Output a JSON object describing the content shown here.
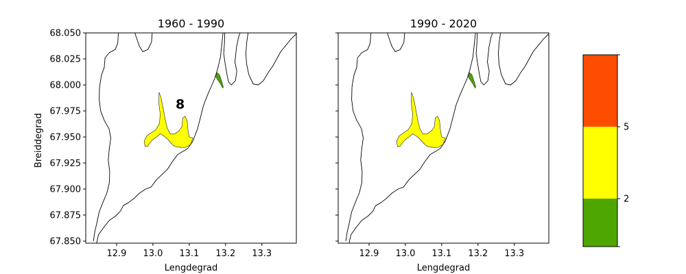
{
  "chart_data": [
    {
      "type": "map",
      "title": "1960 - 1990",
      "xlabel": "Lengdegrad",
      "ylabel": "Breiddegrad",
      "xlim": [
        12.815,
        13.395
      ],
      "ylim": [
        67.848,
        68.05
      ],
      "xticks": [
        12.9,
        13.0,
        13.1,
        13.2,
        13.3
      ],
      "xtick_labels": [
        "12.9",
        "13.0",
        "13.1",
        "13.2",
        "13.3"
      ],
      "yticks": [
        67.85,
        67.875,
        67.9,
        67.925,
        67.95,
        67.975,
        68.0,
        68.025,
        68.05
      ],
      "ytick_labels": [
        "67.850",
        "67.875",
        "67.900",
        "67.925",
        "67.950",
        "67.975",
        "68.000",
        "68.025",
        "68.050"
      ],
      "annotation": "8",
      "annotation_position": [
        13.075,
        67.982
      ],
      "regions": [
        {
          "name": "yellow-zone",
          "color": "#ffff00",
          "class": "2-5",
          "outline": [
            [
              13.017,
              67.993
            ],
            [
              13.022,
              67.988
            ],
            [
              13.028,
              67.978
            ],
            [
              13.035,
              67.965
            ],
            [
              13.04,
              67.958
            ],
            [
              13.048,
              67.953
            ],
            [
              13.06,
              67.953
            ],
            [
              13.072,
              67.956
            ],
            [
              13.08,
              67.96
            ],
            [
              13.082,
              67.968
            ],
            [
              13.088,
              67.97
            ],
            [
              13.094,
              67.966
            ],
            [
              13.097,
              67.955
            ],
            [
              13.1,
              67.95
            ],
            [
              13.11,
              67.949
            ],
            [
              13.104,
              67.943
            ],
            [
              13.09,
              67.94
            ],
            [
              13.075,
              67.94
            ],
            [
              13.06,
              67.941
            ],
            [
              13.05,
              67.944
            ],
            [
              13.04,
              67.948
            ],
            [
              13.03,
              67.951
            ],
            [
              13.02,
              67.953
            ],
            [
              13.01,
              67.95
            ],
            [
              12.998,
              67.947
            ],
            [
              12.985,
              67.941
            ],
            [
              12.978,
              67.941
            ],
            [
              12.976,
              67.946
            ],
            [
              12.983,
              67.951
            ],
            [
              12.995,
              67.954
            ],
            [
              13.008,
              67.957
            ],
            [
              13.018,
              67.963
            ],
            [
              13.02,
              67.972
            ],
            [
              13.016,
              67.983
            ]
          ]
        },
        {
          "name": "green-zone",
          "color": "#4ea600",
          "class": "<2",
          "outline": [
            [
              13.176,
              68.012
            ],
            [
              13.183,
              68.01
            ],
            [
              13.188,
              68.005
            ],
            [
              13.194,
              67.998
            ],
            [
              13.192,
              67.997
            ],
            [
              13.186,
              68.001
            ],
            [
              13.178,
              68.005
            ],
            [
              13.173,
              68.008
            ]
          ]
        }
      ]
    },
    {
      "type": "map",
      "title": "1990 - 2020",
      "xlabel": "Lengdegrad",
      "ylabel": "",
      "xlim": [
        12.815,
        13.395
      ],
      "ylim": [
        67.848,
        68.05
      ],
      "xticks": [
        12.9,
        13.0,
        13.1,
        13.2,
        13.3
      ],
      "xtick_labels": [
        "12.9",
        "13.0",
        "13.1",
        "13.2",
        "13.3"
      ],
      "regions": [
        {
          "name": "yellow-zone",
          "color": "#ffff00",
          "class": "2-5",
          "outline": [
            [
              13.017,
              67.993
            ],
            [
              13.022,
              67.988
            ],
            [
              13.028,
              67.978
            ],
            [
              13.035,
              67.965
            ],
            [
              13.04,
              67.958
            ],
            [
              13.048,
              67.953
            ],
            [
              13.06,
              67.953
            ],
            [
              13.072,
              67.956
            ],
            [
              13.08,
              67.96
            ],
            [
              13.082,
              67.968
            ],
            [
              13.088,
              67.97
            ],
            [
              13.094,
              67.966
            ],
            [
              13.097,
              67.955
            ],
            [
              13.1,
              67.95
            ],
            [
              13.11,
              67.949
            ],
            [
              13.104,
              67.943
            ],
            [
              13.09,
              67.94
            ],
            [
              13.075,
              67.94
            ],
            [
              13.06,
              67.941
            ],
            [
              13.05,
              67.944
            ],
            [
              13.04,
              67.948
            ],
            [
              13.03,
              67.951
            ],
            [
              13.02,
              67.953
            ],
            [
              13.01,
              67.95
            ],
            [
              12.998,
              67.947
            ],
            [
              12.985,
              67.941
            ],
            [
              12.978,
              67.941
            ],
            [
              12.976,
              67.946
            ],
            [
              12.983,
              67.951
            ],
            [
              12.995,
              67.954
            ],
            [
              13.008,
              67.957
            ],
            [
              13.018,
              67.963
            ],
            [
              13.02,
              67.972
            ],
            [
              13.016,
              67.983
            ]
          ]
        },
        {
          "name": "green-zone",
          "color": "#4ea600",
          "class": "<2",
          "outline": [
            [
              13.176,
              68.012
            ],
            [
              13.183,
              68.01
            ],
            [
              13.188,
              68.005
            ],
            [
              13.194,
              67.998
            ],
            [
              13.192,
              67.997
            ],
            [
              13.186,
              68.001
            ],
            [
              13.178,
              68.005
            ],
            [
              13.173,
              68.008
            ]
          ]
        }
      ]
    },
    {
      "type": "colorbar",
      "levels": [
        0,
        2,
        5,
        8
      ],
      "tick_labels": [
        "2",
        "5"
      ],
      "colors": [
        "#4ea600",
        "#ffff00",
        "#ff4d00"
      ]
    }
  ],
  "coastline": {
    "color": "#000000",
    "lines": [
      [
        [
          12.845,
          67.848
        ],
        [
          12.85,
          67.856
        ],
        [
          12.862,
          67.862
        ],
        [
          12.88,
          67.87
        ],
        [
          12.897,
          67.874
        ],
        [
          12.911,
          67.879
        ],
        [
          12.918,
          67.884
        ],
        [
          12.933,
          67.887
        ],
        [
          12.948,
          67.891
        ],
        [
          12.963,
          67.896
        ],
        [
          12.98,
          67.9
        ],
        [
          12.995,
          67.902
        ],
        [
          13.01,
          67.909
        ],
        [
          13.025,
          67.914
        ],
        [
          13.04,
          67.919
        ],
        [
          13.055,
          67.927
        ],
        [
          13.068,
          67.933
        ],
        [
          13.082,
          67.936
        ],
        [
          13.096,
          67.939
        ],
        [
          13.11,
          67.946
        ],
        [
          13.123,
          67.958
        ],
        [
          13.131,
          67.969
        ],
        [
          13.14,
          67.981
        ],
        [
          13.15,
          67.99
        ],
        [
          13.16,
          67.998
        ],
        [
          13.17,
          68.006
        ],
        [
          13.178,
          68.015
        ],
        [
          13.186,
          68.027
        ],
        [
          13.19,
          68.04
        ],
        [
          13.193,
          68.05
        ]
      ],
      [
        [
          13.198,
          68.05
        ],
        [
          13.197,
          68.04
        ],
        [
          13.195,
          68.03
        ],
        [
          13.199,
          68.02
        ],
        [
          13.204,
          68.01
        ],
        [
          13.208,
          68.003
        ],
        [
          13.216,
          68.0
        ],
        [
          13.227,
          68.004
        ],
        [
          13.231,
          68.013
        ],
        [
          13.226,
          68.022
        ],
        [
          13.23,
          68.036
        ],
        [
          13.236,
          68.046
        ],
        [
          13.24,
          68.05
        ]
      ],
      [
        [
          13.262,
          68.05
        ],
        [
          13.258,
          68.04
        ],
        [
          13.256,
          68.03
        ],
        [
          13.258,
          68.02
        ],
        [
          13.264,
          68.01
        ],
        [
          13.276,
          68.001
        ],
        [
          13.29,
          68.0
        ],
        [
          13.304,
          68.004
        ],
        [
          13.318,
          68.012
        ],
        [
          13.33,
          68.018
        ],
        [
          13.341,
          68.025
        ],
        [
          13.352,
          68.032
        ],
        [
          13.366,
          68.038
        ],
        [
          13.38,
          68.044
        ],
        [
          13.392,
          68.048
        ],
        [
          13.395,
          68.049
        ]
      ],
      [
        [
          12.905,
          68.05
        ],
        [
          12.903,
          68.04
        ],
        [
          12.896,
          68.034
        ],
        [
          12.88,
          68.031
        ],
        [
          12.868,
          68.026
        ],
        [
          12.866,
          68.017
        ],
        [
          12.858,
          68.009
        ],
        [
          12.853,
          67.998
        ],
        [
          12.852,
          67.986
        ],
        [
          12.856,
          67.975
        ],
        [
          12.866,
          67.966
        ],
        [
          12.879,
          67.958
        ],
        [
          12.884,
          67.949
        ],
        [
          12.88,
          67.939
        ],
        [
          12.877,
          67.928
        ],
        [
          12.881,
          67.917
        ],
        [
          12.88,
          67.906
        ],
        [
          12.873,
          67.896
        ],
        [
          12.862,
          67.887
        ],
        [
          12.852,
          67.878
        ],
        [
          12.846,
          67.868
        ],
        [
          12.84,
          67.859
        ],
        [
          12.836,
          67.85
        ]
      ],
      [
        [
          12.998,
          68.05
        ],
        [
          12.996,
          68.041
        ],
        [
          12.986,
          68.034
        ],
        [
          12.972,
          68.032
        ],
        [
          12.963,
          68.037
        ],
        [
          12.956,
          68.044
        ],
        [
          12.95,
          68.05
        ]
      ]
    ]
  }
}
